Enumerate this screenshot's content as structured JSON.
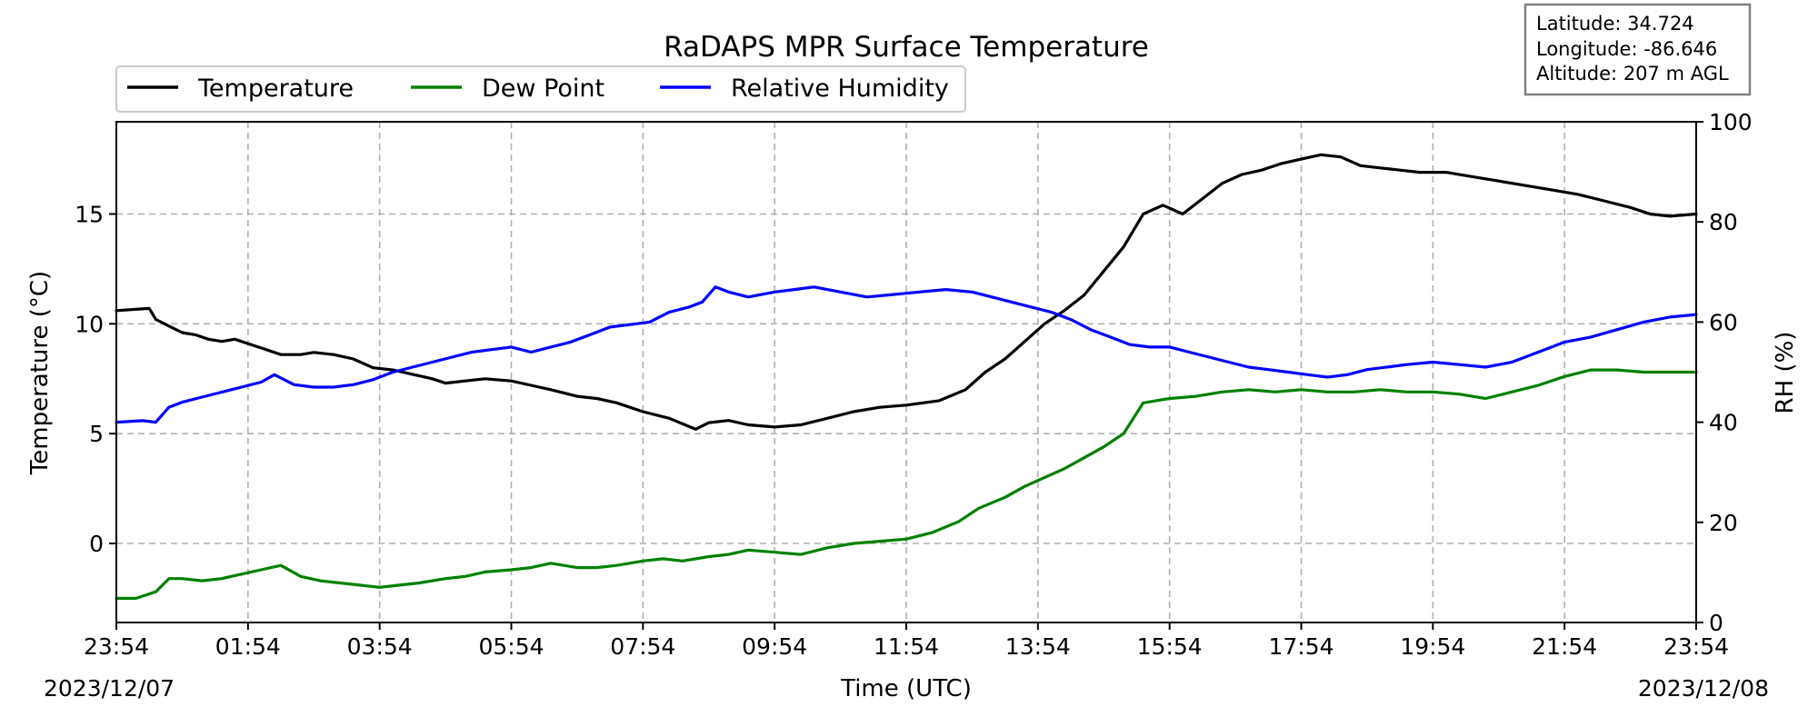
{
  "chart_data": {
    "type": "line",
    "title": "RaDAPS MPR Surface Temperature",
    "xlabel": "Time (UTC)",
    "ylabel_left": "Temperature ($^\\circ$C)",
    "ylabel_left_display": "Temperature (°C)",
    "ylabel_right": "RH (%)",
    "date_start": "2023/12/07",
    "date_end": "2023/12/08",
    "x_ticks": [
      "23:54",
      "01:54",
      "03:54",
      "05:54",
      "07:54",
      "09:54",
      "11:54",
      "13:54",
      "15:54",
      "17:54",
      "19:54",
      "21:54",
      "23:54"
    ],
    "x_range_hours": [
      0,
      24
    ],
    "ylim_left": [
      -3.6,
      19.2
    ],
    "ylim_right": [
      0,
      100
    ],
    "yticks_left": [
      0,
      5,
      10,
      15
    ],
    "yticks_right": [
      0,
      20,
      40,
      60,
      80,
      100
    ],
    "grid": true,
    "legend_placement": "top-left above plot",
    "station_info": {
      "latitude": "Latitude: 34.724",
      "longitude": "Longitude: -86.646",
      "altitude": "Altitude: 207 m AGL"
    },
    "series": [
      {
        "name": "Temperature",
        "axis": "left",
        "color": "#000000",
        "x": [
          0.0,
          0.5,
          0.6,
          0.8,
          1.0,
          1.2,
          1.4,
          1.6,
          1.8,
          2.0,
          2.2,
          2.5,
          2.8,
          3.0,
          3.3,
          3.6,
          3.9,
          4.2,
          4.5,
          4.8,
          5.0,
          5.3,
          5.6,
          6.0,
          6.3,
          6.6,
          7.0,
          7.3,
          7.6,
          8.0,
          8.4,
          8.8,
          9.0,
          9.3,
          9.6,
          10.0,
          10.4,
          10.8,
          11.2,
          11.6,
          12.0,
          12.5,
          12.9,
          13.2,
          13.5,
          13.8,
          14.1,
          14.4,
          14.7,
          15.0,
          15.3,
          15.6,
          15.9,
          16.2,
          16.5,
          16.8,
          17.1,
          17.4,
          17.7,
          18.0,
          18.3,
          18.6,
          18.9,
          19.2,
          19.5,
          19.8,
          20.2,
          20.6,
          21.0,
          21.4,
          21.8,
          22.2,
          22.6,
          23.0,
          23.3,
          23.6,
          24.0
        ],
        "values": [
          10.6,
          10.7,
          10.2,
          9.9,
          9.6,
          9.5,
          9.3,
          9.2,
          9.3,
          9.1,
          8.9,
          8.6,
          8.6,
          8.7,
          8.6,
          8.4,
          8.0,
          7.9,
          7.7,
          7.5,
          7.3,
          7.4,
          7.5,
          7.4,
          7.2,
          7.0,
          6.7,
          6.6,
          6.4,
          6.0,
          5.7,
          5.2,
          5.5,
          5.6,
          5.4,
          5.3,
          5.4,
          5.7,
          6.0,
          6.2,
          6.3,
          6.5,
          7.0,
          7.8,
          8.4,
          9.2,
          10.0,
          10.6,
          11.3,
          12.4,
          13.5,
          15.0,
          15.4,
          15.0,
          15.7,
          16.4,
          16.8,
          17.0,
          17.3,
          17.5,
          17.7,
          17.6,
          17.2,
          17.1,
          17.0,
          16.9,
          16.9,
          16.7,
          16.5,
          16.3,
          16.1,
          15.9,
          15.6,
          15.3,
          15.0,
          14.9,
          15.0
        ]
      },
      {
        "name": "Dew Point",
        "axis": "left",
        "color": "#008000",
        "x": [
          0.0,
          0.3,
          0.6,
          0.8,
          1.0,
          1.3,
          1.6,
          1.9,
          2.2,
          2.5,
          2.8,
          3.1,
          3.4,
          3.7,
          4.0,
          4.3,
          4.6,
          5.0,
          5.3,
          5.6,
          6.0,
          6.3,
          6.6,
          7.0,
          7.3,
          7.6,
          8.0,
          8.3,
          8.6,
          9.0,
          9.3,
          9.6,
          10.0,
          10.4,
          10.8,
          11.2,
          11.6,
          12.0,
          12.4,
          12.8,
          13.1,
          13.5,
          13.8,
          14.1,
          14.4,
          14.7,
          15.0,
          15.3,
          15.6,
          16.0,
          16.4,
          16.8,
          17.2,
          17.6,
          18.0,
          18.4,
          18.8,
          19.2,
          19.6,
          20.0,
          20.4,
          20.8,
          21.2,
          21.6,
          22.0,
          22.4,
          22.8,
          23.2,
          23.6,
          24.0
        ],
        "values": [
          -2.5,
          -2.5,
          -2.2,
          -1.6,
          -1.6,
          -1.7,
          -1.6,
          -1.4,
          -1.2,
          -1.0,
          -1.5,
          -1.7,
          -1.8,
          -1.9,
          -2.0,
          -1.9,
          -1.8,
          -1.6,
          -1.5,
          -1.3,
          -1.2,
          -1.1,
          -0.9,
          -1.1,
          -1.1,
          -1.0,
          -0.8,
          -0.7,
          -0.8,
          -0.6,
          -0.5,
          -0.3,
          -0.4,
          -0.5,
          -0.2,
          0.0,
          0.1,
          0.2,
          0.5,
          1.0,
          1.6,
          2.1,
          2.6,
          3.0,
          3.4,
          3.9,
          4.4,
          5.0,
          6.4,
          6.6,
          6.7,
          6.9,
          7.0,
          6.9,
          7.0,
          6.9,
          6.9,
          7.0,
          6.9,
          6.9,
          6.8,
          6.6,
          6.9,
          7.2,
          7.6,
          7.9,
          7.9,
          7.8,
          7.8,
          7.8
        ]
      },
      {
        "name": "Relative Humidity",
        "axis": "right",
        "color": "#0000ff",
        "x": [
          0.0,
          0.4,
          0.6,
          0.8,
          1.0,
          1.3,
          1.6,
          1.9,
          2.2,
          2.4,
          2.7,
          3.0,
          3.3,
          3.6,
          3.9,
          4.2,
          4.5,
          4.8,
          5.1,
          5.4,
          5.7,
          6.0,
          6.3,
          6.6,
          6.9,
          7.2,
          7.5,
          7.8,
          8.1,
          8.4,
          8.7,
          8.9,
          9.1,
          9.3,
          9.6,
          10.0,
          10.3,
          10.6,
          11.0,
          11.4,
          11.8,
          12.2,
          12.6,
          13.0,
          13.3,
          13.6,
          13.9,
          14.2,
          14.5,
          14.8,
          15.1,
          15.4,
          15.7,
          16.0,
          16.3,
          16.6,
          16.9,
          17.2,
          17.5,
          17.8,
          18.1,
          18.4,
          18.7,
          19.0,
          19.3,
          19.6,
          20.0,
          20.4,
          20.8,
          21.2,
          21.6,
          22.0,
          22.4,
          22.8,
          23.2,
          23.6,
          24.0
        ],
        "values": [
          40.0,
          40.3,
          40.0,
          43.0,
          44.0,
          45.0,
          46.0,
          47.0,
          48.0,
          49.5,
          47.5,
          47.0,
          47.0,
          47.5,
          48.5,
          50.0,
          51.0,
          52.0,
          53.0,
          54.0,
          54.5,
          55.0,
          54.0,
          55.0,
          56.0,
          57.5,
          59.0,
          59.5,
          60.0,
          62.0,
          63.0,
          64.0,
          67.0,
          66.0,
          65.0,
          66.0,
          66.5,
          67.0,
          66.0,
          65.0,
          65.5,
          66.0,
          66.5,
          66.0,
          65.0,
          64.0,
          63.0,
          62.0,
          60.5,
          58.5,
          57.0,
          55.5,
          55.0,
          55.0,
          54.0,
          53.0,
          52.0,
          51.0,
          50.5,
          50.0,
          49.5,
          49.0,
          49.5,
          50.5,
          51.0,
          51.5,
          52.0,
          51.5,
          51.0,
          52.0,
          54.0,
          56.0,
          57.0,
          58.5,
          60.0,
          61.0,
          61.5
        ]
      }
    ]
  }
}
